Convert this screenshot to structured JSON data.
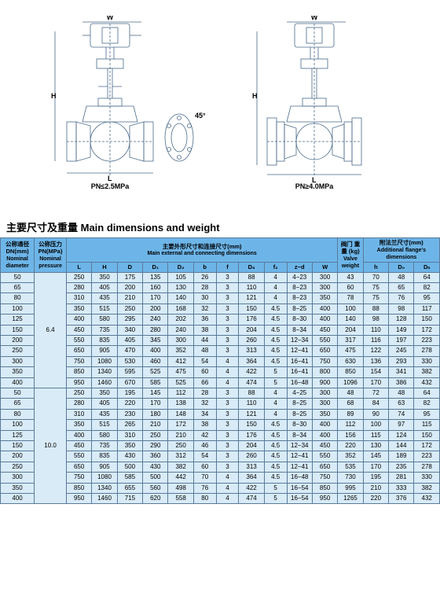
{
  "diagrams": {
    "left_label": "PN≤2.5MPa",
    "right_label": "PN≥4.0MPa",
    "dim_W": "W",
    "dim_H": "H",
    "dim_L": "L",
    "dim_DN": "DN",
    "dim_D1": "D₁",
    "dim_D2": "D₂",
    "dim_D": "D",
    "dim_D0": "D₀",
    "dim_Dn": "Dₙ",
    "dim_b": "b",
    "dim_h": "h",
    "dim_zd": "z−d",
    "dim_45": "45°"
  },
  "title": "主要尺寸及重量  Main dimensions and weight",
  "headers": {
    "dn": {
      "cn": "公称通径 DN(mm)",
      "en": "Nominal diameter"
    },
    "pn": {
      "cn": "公称压力 PN(MPa)",
      "en": "Nominal pressure"
    },
    "main": {
      "cn": "主要外形尺寸和连接尺寸(mm)",
      "en": "Main external and connecting dimensions"
    },
    "wt": {
      "cn": "阀门 重量 (kg)",
      "en": "Valve weight"
    },
    "add": {
      "cn": "附法兰尺寸(mm)",
      "en": "Additional flange's dimensions"
    },
    "cols": [
      "L",
      "H",
      "D",
      "D₁",
      "D₂",
      "b",
      "f",
      "D₆",
      "f₂",
      "z−d",
      "W"
    ],
    "addcols": [
      "h",
      "D₀",
      "Dₙ"
    ]
  },
  "groups": [
    {
      "pn": "6.4",
      "rows": [
        {
          "dn": "50",
          "v": [
            "250",
            "350",
            "175",
            "135",
            "105",
            "26",
            "3",
            "88",
            "4",
            "4−23",
            "300",
            "43",
            "70",
            "48",
            "64"
          ]
        },
        {
          "dn": "65",
          "v": [
            "280",
            "405",
            "200",
            "160",
            "130",
            "28",
            "3",
            "110",
            "4",
            "8−23",
            "300",
            "60",
            "75",
            "65",
            "82"
          ]
        },
        {
          "dn": "80",
          "v": [
            "310",
            "435",
            "210",
            "170",
            "140",
            "30",
            "3",
            "121",
            "4",
            "8−23",
            "350",
            "78",
            "75",
            "76",
            "95"
          ]
        },
        {
          "dn": "100",
          "v": [
            "350",
            "515",
            "250",
            "200",
            "168",
            "32",
            "3",
            "150",
            "4.5",
            "8−25",
            "400",
            "100",
            "88",
            "98",
            "117"
          ]
        },
        {
          "dn": "125",
          "v": [
            "400",
            "580",
            "295",
            "240",
            "202",
            "36",
            "3",
            "176",
            "4.5",
            "8−30",
            "400",
            "140",
            "98",
            "128",
            "150"
          ]
        },
        {
          "dn": "150",
          "v": [
            "450",
            "735",
            "340",
            "280",
            "240",
            "38",
            "3",
            "204",
            "4.5",
            "8−34",
            "450",
            "204",
            "110",
            "149",
            "172"
          ]
        },
        {
          "dn": "200",
          "v": [
            "550",
            "835",
            "405",
            "345",
            "300",
            "44",
            "3",
            "260",
            "4.5",
            "12−34",
            "550",
            "317",
            "116",
            "197",
            "223"
          ]
        },
        {
          "dn": "250",
          "v": [
            "650",
            "905",
            "470",
            "400",
            "352",
            "48",
            "3",
            "313",
            "4.5",
            "12−41",
            "650",
            "475",
            "122",
            "245",
            "278"
          ]
        },
        {
          "dn": "300",
          "v": [
            "750",
            "1080",
            "530",
            "460",
            "412",
            "54",
            "4",
            "364",
            "4.5",
            "16−41",
            "750",
            "630",
            "136",
            "293",
            "330"
          ]
        },
        {
          "dn": "350",
          "v": [
            "850",
            "1340",
            "595",
            "525",
            "475",
            "60",
            "4",
            "422",
            "5",
            "16−41",
            "800",
            "850",
            "154",
            "341",
            "382"
          ]
        },
        {
          "dn": "400",
          "v": [
            "950",
            "1460",
            "670",
            "585",
            "525",
            "66",
            "4",
            "474",
            "5",
            "16−48",
            "900",
            "1096",
            "170",
            "386",
            "432"
          ]
        }
      ]
    },
    {
      "pn": "10.0",
      "rows": [
        {
          "dn": "50",
          "v": [
            "250",
            "350",
            "195",
            "145",
            "112",
            "28",
            "3",
            "88",
            "4",
            "4−25",
            "300",
            "48",
            "72",
            "48",
            "64"
          ]
        },
        {
          "dn": "65",
          "v": [
            "280",
            "405",
            "220",
            "170",
            "138",
            "32",
            "3",
            "110",
            "4",
            "8−25",
            "300",
            "68",
            "84",
            "63",
            "82"
          ]
        },
        {
          "dn": "80",
          "v": [
            "310",
            "435",
            "230",
            "180",
            "148",
            "34",
            "3",
            "121",
            "4",
            "8−25",
            "350",
            "89",
            "90",
            "74",
            "95"
          ]
        },
        {
          "dn": "100",
          "v": [
            "350",
            "515",
            "265",
            "210",
            "172",
            "38",
            "3",
            "150",
            "4.5",
            "8−30",
            "400",
            "112",
            "100",
            "97",
            "115"
          ]
        },
        {
          "dn": "125",
          "v": [
            "400",
            "580",
            "310",
            "250",
            "210",
            "42",
            "3",
            "176",
            "4.5",
            "8−34",
            "400",
            "156",
            "115",
            "124",
            "150"
          ]
        },
        {
          "dn": "150",
          "v": [
            "450",
            "735",
            "350",
            "290",
            "250",
            "46",
            "3",
            "204",
            "4.5",
            "12−34",
            "450",
            "220",
            "130",
            "144",
            "172"
          ]
        },
        {
          "dn": "200",
          "v": [
            "550",
            "835",
            "430",
            "360",
            "312",
            "54",
            "3",
            "260",
            "4.5",
            "12−41",
            "550",
            "352",
            "145",
            "189",
            "223"
          ]
        },
        {
          "dn": "250",
          "v": [
            "650",
            "905",
            "500",
            "430",
            "382",
            "60",
            "3",
            "313",
            "4.5",
            "12−41",
            "650",
            "535",
            "170",
            "235",
            "278"
          ]
        },
        {
          "dn": "300",
          "v": [
            "750",
            "1080",
            "585",
            "500",
            "442",
            "70",
            "4",
            "364",
            "4.5",
            "16−48",
            "750",
            "730",
            "195",
            "281",
            "330"
          ]
        },
        {
          "dn": "350",
          "v": [
            "850",
            "1340",
            "655",
            "560",
            "498",
            "76",
            "4",
            "422",
            "5",
            "16−54",
            "850",
            "995",
            "210",
            "333",
            "382"
          ]
        },
        {
          "dn": "400",
          "v": [
            "950",
            "1460",
            "715",
            "620",
            "558",
            "80",
            "4",
            "474",
            "5",
            "16−54",
            "950",
            "1265",
            "220",
            "376",
            "432"
          ]
        }
      ]
    }
  ]
}
